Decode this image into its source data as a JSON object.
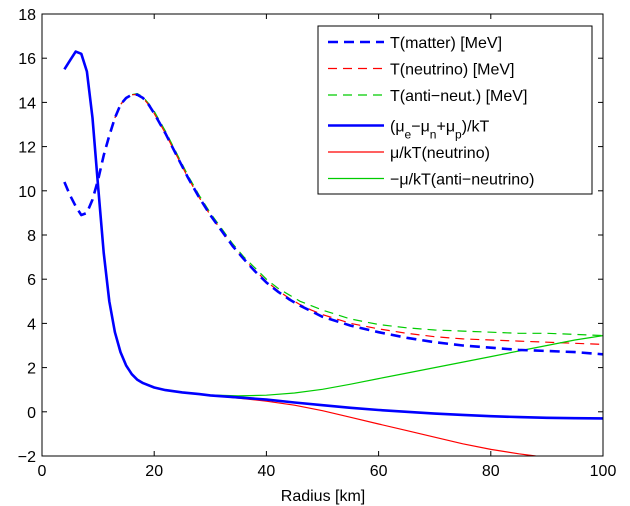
{
  "chart_data": {
    "type": "line",
    "title": "",
    "xlabel": "Radius [km]",
    "ylabel": "",
    "xlim": [
      0,
      100
    ],
    "ylim": [
      -2,
      18
    ],
    "xticks": [
      0,
      20,
      40,
      60,
      80,
      100
    ],
    "yticks": [
      -2,
      0,
      2,
      4,
      6,
      8,
      10,
      12,
      14,
      16,
      18
    ],
    "grid": false,
    "legend_position": "top-right",
    "series": [
      {
        "name": "T(matter) [MeV]",
        "color": "#0000ff",
        "style": "dashed",
        "weight": "thick",
        "x": [
          4,
          5,
          6,
          7,
          8,
          9,
          10,
          11,
          12,
          13,
          14,
          15,
          16,
          17,
          18,
          19,
          20,
          22,
          24,
          26,
          28,
          30,
          32,
          34,
          36,
          38,
          40,
          42,
          44,
          46,
          48,
          50,
          55,
          60,
          65,
          70,
          75,
          80,
          85,
          90,
          95,
          100
        ],
        "y": [
          10.4,
          9.8,
          9.3,
          8.9,
          9.0,
          9.6,
          10.5,
          11.6,
          12.5,
          13.3,
          13.9,
          14.2,
          14.35,
          14.35,
          14.2,
          13.9,
          13.5,
          12.6,
          11.6,
          10.6,
          9.7,
          8.9,
          8.2,
          7.5,
          6.9,
          6.35,
          5.85,
          5.45,
          5.1,
          4.8,
          4.55,
          4.3,
          3.9,
          3.6,
          3.35,
          3.15,
          3.0,
          2.9,
          2.8,
          2.75,
          2.7,
          2.6
        ]
      },
      {
        "name": "T(neutrino) [MeV]",
        "color": "#ff0000",
        "style": "dashed",
        "weight": "thin",
        "x": [
          13,
          14,
          15,
          16,
          17,
          18,
          19,
          20,
          22,
          24,
          26,
          28,
          30,
          32,
          34,
          36,
          38,
          40,
          42,
          44,
          46,
          48,
          50,
          55,
          60,
          65,
          70,
          75,
          80,
          85,
          90,
          95,
          100
        ],
        "y": [
          13.3,
          13.9,
          14.2,
          14.35,
          14.35,
          14.2,
          13.9,
          13.5,
          12.6,
          11.6,
          10.6,
          9.7,
          8.9,
          8.2,
          7.5,
          6.9,
          6.4,
          5.9,
          5.5,
          5.15,
          4.85,
          4.6,
          4.4,
          4.0,
          3.75,
          3.55,
          3.4,
          3.3,
          3.25,
          3.2,
          3.15,
          3.1,
          3.05
        ]
      },
      {
        "name": "T(anti−neut.) [MeV]",
        "color": "#00cc00",
        "style": "dashed",
        "weight": "thin",
        "x": [
          13,
          14,
          15,
          16,
          17,
          18,
          19,
          20,
          22,
          24,
          26,
          28,
          30,
          32,
          34,
          36,
          38,
          40,
          42,
          44,
          46,
          48,
          50,
          55,
          60,
          65,
          70,
          75,
          80,
          85,
          90,
          95,
          100
        ],
        "y": [
          13.3,
          13.9,
          14.2,
          14.35,
          14.4,
          14.25,
          13.95,
          13.6,
          12.7,
          11.7,
          10.7,
          9.8,
          9.0,
          8.3,
          7.6,
          7.0,
          6.5,
          6.0,
          5.6,
          5.3,
          5.0,
          4.8,
          4.6,
          4.2,
          3.95,
          3.8,
          3.7,
          3.65,
          3.6,
          3.55,
          3.55,
          3.5,
          3.45
        ]
      },
      {
        "name": "(μ_e−μ_n+μ_p)/kT",
        "color": "#0000ff",
        "style": "solid",
        "weight": "thick",
        "x": [
          4,
          5,
          6,
          7,
          8,
          9,
          10,
          11,
          12,
          13,
          14,
          15,
          16,
          17,
          18,
          20,
          22,
          25,
          28,
          30,
          35,
          40,
          45,
          50,
          55,
          60,
          65,
          70,
          75,
          80,
          85,
          90,
          95,
          100
        ],
        "y": [
          15.5,
          15.9,
          16.3,
          16.2,
          15.4,
          13.3,
          10.2,
          7.2,
          5.0,
          3.6,
          2.7,
          2.1,
          1.7,
          1.45,
          1.3,
          1.1,
          0.98,
          0.88,
          0.8,
          0.74,
          0.65,
          0.55,
          0.42,
          0.3,
          0.18,
          0.08,
          0.0,
          -0.08,
          -0.14,
          -0.2,
          -0.24,
          -0.27,
          -0.29,
          -0.3
        ]
      },
      {
        "name": "μ/kT(neutrino)",
        "color": "#ff0000",
        "style": "solid",
        "weight": "thin",
        "x": [
          18,
          20,
          22,
          25,
          28,
          30,
          35,
          40,
          45,
          50,
          55,
          60,
          65,
          70,
          75,
          80,
          85,
          88
        ],
        "y": [
          1.3,
          1.1,
          0.98,
          0.88,
          0.8,
          0.74,
          0.62,
          0.48,
          0.3,
          0.05,
          -0.25,
          -0.55,
          -0.85,
          -1.15,
          -1.45,
          -1.7,
          -1.9,
          -2.0
        ]
      },
      {
        "name": "−μ/kT(anti−neutrino)",
        "color": "#00cc00",
        "style": "solid",
        "weight": "thin",
        "x": [
          18,
          20,
          22,
          25,
          28,
          30,
          35,
          40,
          45,
          50,
          55,
          60,
          65,
          70,
          75,
          80,
          85,
          90,
          95,
          100
        ],
        "y": [
          1.3,
          1.1,
          0.98,
          0.88,
          0.8,
          0.76,
          0.72,
          0.75,
          0.85,
          1.02,
          1.25,
          1.5,
          1.75,
          2.0,
          2.25,
          2.5,
          2.75,
          3.0,
          3.25,
          3.45
        ]
      }
    ]
  }
}
